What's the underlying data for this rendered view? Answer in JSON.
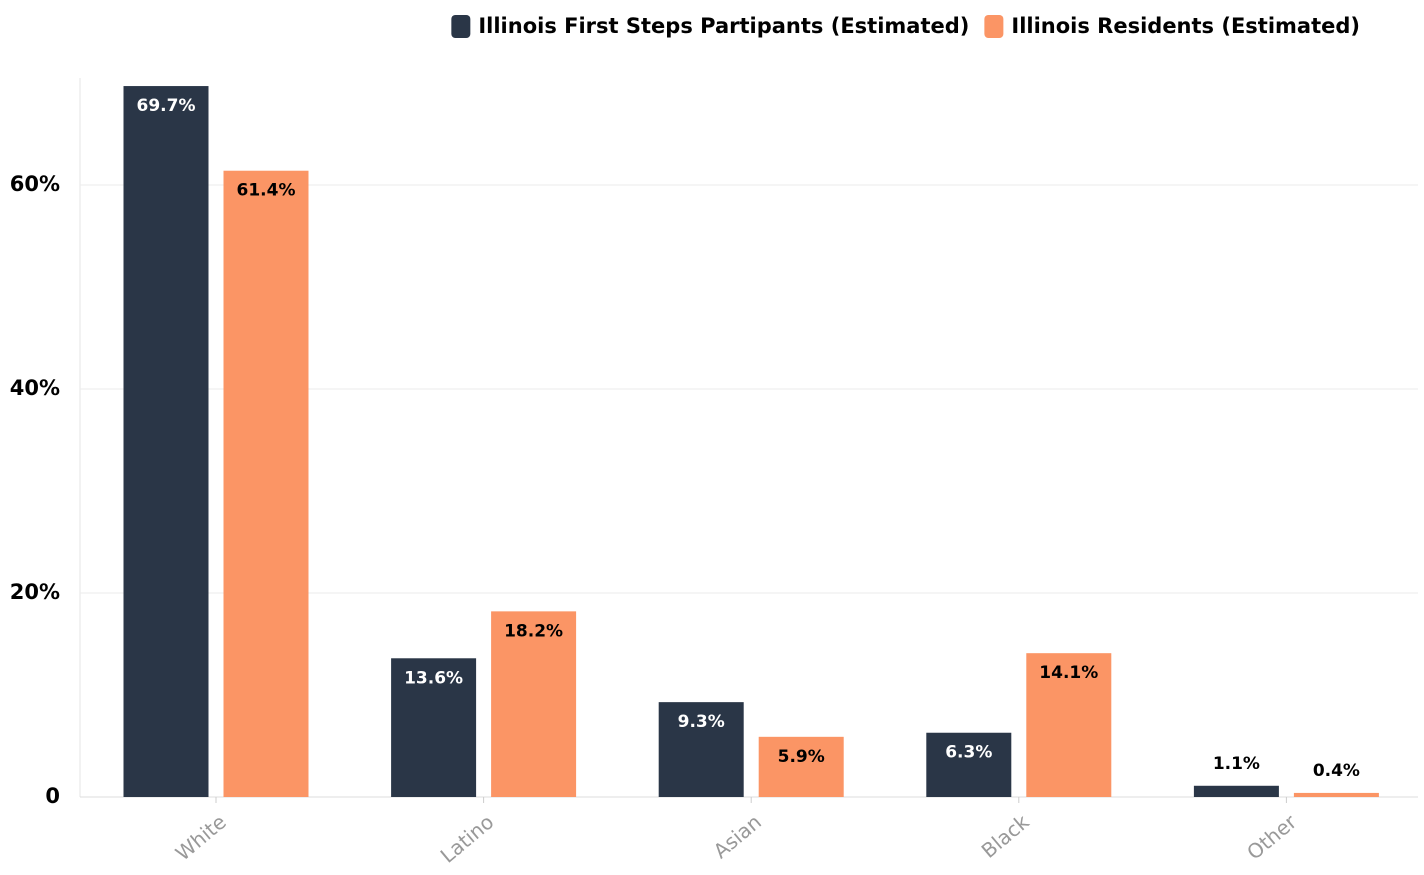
{
  "chart_data": {
    "type": "bar",
    "categories": [
      "White",
      "Latino",
      "Asian",
      "Black",
      "Other"
    ],
    "series": [
      {
        "name": "Illinois First Steps Partipants (Estimated)",
        "color": "#2a3647",
        "values": [
          69.7,
          13.6,
          9.3,
          6.3,
          1.1
        ],
        "value_labels": [
          "69.7%",
          "13.6%",
          "9.3%",
          "6.3%",
          "1.1%"
        ]
      },
      {
        "name": "Illinois Residents (Estimated)",
        "color": "#fb9565",
        "values": [
          61.4,
          18.2,
          5.9,
          14.1,
          0.4
        ],
        "value_labels": [
          "61.4%",
          "18.2%",
          "5.9%",
          "14.1%",
          "0.4%"
        ]
      }
    ],
    "ylim": [
      0,
      70
    ],
    "yticks": [
      0,
      {
        "value": 20,
        "label": "20%"
      },
      {
        "value": 40,
        "label": "40%"
      },
      {
        "value": 60,
        "label": "60%"
      }
    ],
    "grid": true,
    "legend": "top-right"
  }
}
